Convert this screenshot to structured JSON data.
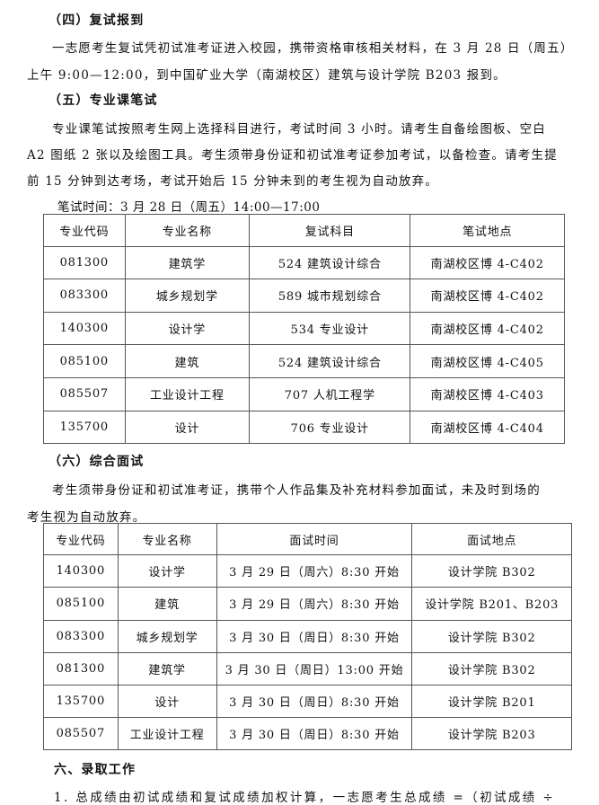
{
  "sec4": {
    "title": "（四）复试报到",
    "p1": "一志愿考生复试凭初试准考证进入校园，携带资格审核相关材料，在 3 月 28 日（周五）",
    "p2": "上午 9:00—12:00，到中国矿业大学（南湖校区）建筑与设计学院 B203 报到。"
  },
  "sec5": {
    "title": "（五）专业课笔试",
    "p1": "专业课笔试按照考生网上选择科目进行，考试时间 3 小时。请考生自备绘图板、空白",
    "p2": "A2 图纸 2 张以及绘图工具。考生须带身份证和初试准考证参加考试，以备检查。请考生提",
    "p3": "前 15 分钟到达考场，考试开始后 15 分钟未到的考生视为自动放弃。",
    "time": "笔试时间：3 月 28 日（周五）14:00—17:00",
    "headers": [
      "专业代码",
      "专业名称",
      "复试科目",
      "笔试地点"
    ],
    "rows": [
      [
        "081300",
        "建筑学",
        "524 建筑设计综合",
        "南湖校区博 4-C402"
      ],
      [
        "083300",
        "城乡规划学",
        "589 城市规划综合",
        "南湖校区博 4-C402"
      ],
      [
        "140300",
        "设计学",
        "534 专业设计",
        "南湖校区博 4-C402"
      ],
      [
        "085100",
        "建筑",
        "524 建筑设计综合",
        "南湖校区博 4-C405"
      ],
      [
        "085507",
        "工业设计工程",
        "707 人机工程学",
        "南湖校区博 4-C403"
      ],
      [
        "135700",
        "设计",
        "706 专业设计",
        "南湖校区博 4-C404"
      ]
    ]
  },
  "sec6": {
    "title": "（六）综合面试",
    "p1": "考生须带身份证和初试准考证，携带个人作品集及补充材料参加面试，未及时到场的",
    "p2": "考生视为自动放弃。",
    "headers": [
      "专业代码",
      "专业名称",
      "面试时间",
      "面试地点"
    ],
    "rows": [
      [
        "140300",
        "设计学",
        "3 月 29 日（周六）8:30 开始",
        "设计学院 B302"
      ],
      [
        "085100",
        "建筑",
        "3 月 29 日（周六）8:30 开始",
        "设计学院 B201、B203"
      ],
      [
        "083300",
        "城乡规划学",
        "3 月 30 日（周日）8:30 开始",
        "设计学院 B302"
      ],
      [
        "081300",
        "建筑学",
        "3 月 30 日（周日）13:00 开始",
        "设计学院 B302"
      ],
      [
        "135700",
        "设计",
        "3 月 30 日（周日）8:30 开始",
        "设计学院 B201"
      ],
      [
        "085507",
        "工业设计工程",
        "3 月 30 日（周日）8:30 开始",
        "设计学院 B203"
      ]
    ]
  },
  "admission": {
    "title": "六、录取工作",
    "p1": "1. 总成绩由初试成绩和复试成绩加权计算，一志愿考生总成绩 =（初试成绩 ÷"
  }
}
